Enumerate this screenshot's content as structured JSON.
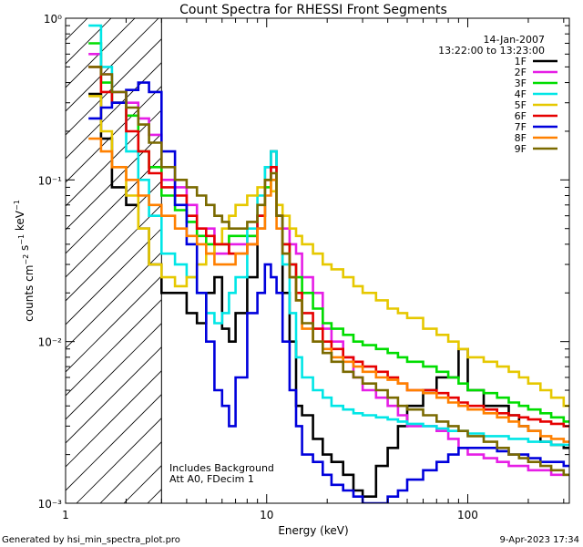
{
  "chart_data": {
    "type": "line",
    "title": "Count Spectra for RHESSI Front Segments",
    "xlabel": "Energy (keV)",
    "ylabel": "counts cm^-2 s^-1 keV^-1",
    "xscale": "log",
    "yscale": "log",
    "xlim": [
      1,
      320
    ],
    "ylim": [
      0.001,
      1
    ],
    "x_ticks": [
      {
        "value": 1,
        "label": "1"
      },
      {
        "value": 10,
        "label": "10"
      },
      {
        "value": 100,
        "label": "100"
      }
    ],
    "y_ticks": [
      {
        "value": 1,
        "label": "10⁰"
      },
      {
        "value": 0.1,
        "label": "10⁻¹"
      },
      {
        "value": 0.01,
        "label": "10⁻²"
      },
      {
        "value": 0.001,
        "label": "10⁻³"
      }
    ],
    "date": "14-Jan-2007",
    "time_range": "13:22:00 to 13:23:00",
    "annotations": [
      "Includes Background",
      "Att A0, FDecim 1"
    ],
    "excluded_region_max_kev": 3,
    "footer_left": "Generated by hsi_min_spectra_plot.pro",
    "footer_right": "9-Apr-2023 17:34",
    "series": [
      {
        "name": "1F",
        "color": "#000000",
        "x": [
          1.3,
          1.5,
          1.7,
          2,
          2.3,
          2.6,
          3,
          3.5,
          4,
          4.5,
          5,
          5.5,
          6,
          6.5,
          7,
          8,
          9,
          9.8,
          10.5,
          11.2,
          12,
          13,
          14,
          15,
          17,
          19,
          21,
          24,
          27,
          30,
          35,
          40,
          45,
          50,
          60,
          70,
          80,
          90,
          100,
          120,
          140,
          160,
          180,
          200,
          230,
          260,
          300
        ],
        "y": [
          0.34,
          0.18,
          0.09,
          0.07,
          0.05,
          0.03,
          0.02,
          0.02,
          0.015,
          0.013,
          0.02,
          0.025,
          0.012,
          0.01,
          0.015,
          0.025,
          0.05,
          0.12,
          0.15,
          0.06,
          0.02,
          0.01,
          0.004,
          0.0035,
          0.0025,
          0.002,
          0.0018,
          0.0015,
          0.0012,
          0.0011,
          0.0017,
          0.0022,
          0.003,
          0.004,
          0.005,
          0.006,
          0.006,
          0.009,
          0.005,
          0.004,
          0.004,
          0.0035,
          0.003,
          0.0028,
          0.0024,
          0.0023,
          0.0022
        ]
      },
      {
        "name": "2F",
        "color": "#e61ee6",
        "x": [
          1.3,
          1.5,
          1.7,
          2,
          2.3,
          2.6,
          3,
          3.5,
          4,
          4.5,
          5,
          5.5,
          6,
          6.5,
          7,
          8,
          9,
          9.8,
          10.5,
          11.2,
          12,
          13,
          14,
          15,
          17,
          19,
          21,
          24,
          27,
          30,
          35,
          40,
          45,
          50,
          60,
          70,
          80,
          90,
          100,
          120,
          140,
          160,
          180,
          200,
          230,
          260,
          300
        ],
        "y": [
          0.6,
          0.45,
          0.35,
          0.3,
          0.24,
          0.19,
          0.1,
          0.09,
          0.07,
          0.05,
          0.05,
          0.035,
          0.035,
          0.04,
          0.04,
          0.045,
          0.06,
          0.1,
          0.12,
          0.06,
          0.05,
          0.04,
          0.035,
          0.025,
          0.02,
          0.012,
          0.01,
          0.008,
          0.006,
          0.005,
          0.0045,
          0.004,
          0.0035,
          0.003,
          0.003,
          0.0028,
          0.0025,
          0.0022,
          0.002,
          0.0019,
          0.0018,
          0.0017,
          0.0017,
          0.0016,
          0.0016,
          0.0015,
          0.0015
        ]
      },
      {
        "name": "3F",
        "color": "#00dd00",
        "x": [
          1.3,
          1.5,
          1.7,
          2,
          2.3,
          2.6,
          3,
          3.5,
          4,
          4.5,
          5,
          5.5,
          6,
          6.5,
          7,
          8,
          9,
          9.8,
          10.5,
          11.2,
          12,
          13,
          14,
          15,
          17,
          19,
          21,
          24,
          27,
          30,
          35,
          40,
          45,
          50,
          60,
          70,
          80,
          90,
          100,
          120,
          140,
          160,
          180,
          200,
          230,
          260,
          300
        ],
        "y": [
          0.7,
          0.4,
          0.3,
          0.25,
          0.15,
          0.12,
          0.08,
          0.065,
          0.055,
          0.045,
          0.04,
          0.04,
          0.04,
          0.045,
          0.045,
          0.045,
          0.06,
          0.09,
          0.1,
          0.06,
          0.04,
          0.03,
          0.025,
          0.02,
          0.016,
          0.013,
          0.012,
          0.011,
          0.01,
          0.0095,
          0.009,
          0.0085,
          0.008,
          0.0075,
          0.007,
          0.0065,
          0.006,
          0.0055,
          0.005,
          0.0048,
          0.0045,
          0.0042,
          0.004,
          0.0038,
          0.0036,
          0.0034,
          0.0032
        ]
      },
      {
        "name": "4F",
        "color": "#00e6e6",
        "x": [
          1.3,
          1.5,
          1.7,
          2,
          2.3,
          2.6,
          3,
          3.5,
          4,
          4.5,
          5,
          5.5,
          6,
          6.5,
          7,
          8,
          9,
          9.8,
          10.5,
          11.2,
          12,
          13,
          14,
          15,
          17,
          19,
          21,
          24,
          27,
          30,
          35,
          40,
          45,
          50,
          60,
          70,
          80,
          90,
          100,
          120,
          140,
          160,
          180,
          200,
          230,
          260,
          300
        ],
        "y": [
          0.9,
          0.5,
          0.3,
          0.15,
          0.1,
          0.06,
          0.035,
          0.03,
          0.025,
          0.02,
          0.015,
          0.013,
          0.015,
          0.02,
          0.025,
          0.05,
          0.08,
          0.12,
          0.15,
          0.06,
          0.03,
          0.015,
          0.008,
          0.006,
          0.005,
          0.0045,
          0.004,
          0.0038,
          0.0036,
          0.0035,
          0.0034,
          0.0033,
          0.0032,
          0.0031,
          0.003,
          0.0029,
          0.0028,
          0.0028,
          0.0027,
          0.0026,
          0.0026,
          0.0025,
          0.0025,
          0.0024,
          0.0024,
          0.0023,
          0.0023
        ]
      },
      {
        "name": "5F",
        "color": "#e6c800",
        "x": [
          1.3,
          1.5,
          1.7,
          2,
          2.3,
          2.6,
          3,
          3.5,
          4,
          4.5,
          5,
          5.5,
          6,
          6.5,
          7,
          8,
          9,
          9.8,
          10.5,
          11.2,
          12,
          13,
          14,
          15,
          17,
          19,
          21,
          24,
          27,
          30,
          35,
          40,
          45,
          50,
          60,
          70,
          80,
          90,
          100,
          120,
          140,
          160,
          180,
          200,
          230,
          260,
          300
        ],
        "y": [
          0.33,
          0.2,
          0.12,
          0.08,
          0.05,
          0.03,
          0.025,
          0.022,
          0.025,
          0.03,
          0.035,
          0.04,
          0.05,
          0.06,
          0.07,
          0.08,
          0.09,
          0.1,
          0.085,
          0.07,
          0.06,
          0.05,
          0.045,
          0.04,
          0.035,
          0.03,
          0.028,
          0.025,
          0.022,
          0.02,
          0.018,
          0.016,
          0.015,
          0.014,
          0.012,
          0.011,
          0.01,
          0.009,
          0.008,
          0.0075,
          0.007,
          0.0065,
          0.006,
          0.0055,
          0.005,
          0.0045,
          0.004
        ]
      },
      {
        "name": "6F",
        "color": "#e60000",
        "x": [
          1.3,
          1.5,
          1.7,
          2,
          2.3,
          2.6,
          3,
          3.5,
          4,
          4.5,
          5,
          5.5,
          6,
          6.5,
          7,
          8,
          9,
          9.8,
          10.5,
          11.2,
          12,
          13,
          14,
          15,
          17,
          19,
          21,
          24,
          27,
          30,
          35,
          40,
          45,
          50,
          60,
          70,
          80,
          90,
          100,
          120,
          140,
          160,
          180,
          200,
          230,
          260,
          300
        ],
        "y": [
          0.5,
          0.35,
          0.3,
          0.2,
          0.15,
          0.11,
          0.09,
          0.08,
          0.06,
          0.05,
          0.045,
          0.04,
          0.04,
          0.035,
          0.035,
          0.04,
          0.06,
          0.1,
          0.12,
          0.06,
          0.04,
          0.03,
          0.02,
          0.015,
          0.012,
          0.01,
          0.009,
          0.008,
          0.0075,
          0.007,
          0.0065,
          0.006,
          0.0055,
          0.005,
          0.005,
          0.0048,
          0.0045,
          0.0042,
          0.004,
          0.0038,
          0.0036,
          0.0035,
          0.0034,
          0.0033,
          0.0032,
          0.0031,
          0.003
        ]
      },
      {
        "name": "7F",
        "color": "#0000dc",
        "x": [
          1.3,
          1.5,
          1.7,
          2,
          2.3,
          2.6,
          3,
          3.5,
          4,
          4.5,
          5,
          5.5,
          6,
          6.5,
          7,
          8,
          9,
          9.8,
          10.5,
          11.2,
          12,
          13,
          14,
          15,
          17,
          19,
          21,
          24,
          27,
          30,
          35,
          40,
          45,
          50,
          60,
          70,
          80,
          90,
          100,
          120,
          140,
          160,
          180,
          200,
          230,
          260,
          300
        ],
        "y": [
          0.24,
          0.28,
          0.3,
          0.36,
          0.4,
          0.35,
          0.15,
          0.07,
          0.04,
          0.02,
          0.01,
          0.005,
          0.004,
          0.003,
          0.006,
          0.015,
          0.02,
          0.03,
          0.025,
          0.02,
          0.01,
          0.005,
          0.003,
          0.002,
          0.0018,
          0.0015,
          0.0013,
          0.0012,
          0.0011,
          0.001,
          0.001,
          0.0011,
          0.0012,
          0.0014,
          0.0016,
          0.0018,
          0.002,
          0.0022,
          0.0022,
          0.0022,
          0.0021,
          0.002,
          0.002,
          0.0019,
          0.0018,
          0.0018,
          0.0017
        ]
      },
      {
        "name": "8F",
        "color": "#ff8000",
        "x": [
          1.3,
          1.5,
          1.7,
          2,
          2.3,
          2.6,
          3,
          3.5,
          4,
          4.5,
          5,
          5.5,
          6,
          6.5,
          7,
          8,
          9,
          9.8,
          10.5,
          11.2,
          12,
          13,
          14,
          15,
          17,
          19,
          21,
          24,
          27,
          30,
          35,
          40,
          45,
          50,
          60,
          70,
          80,
          90,
          100,
          120,
          140,
          160,
          180,
          200,
          230,
          260,
          300
        ],
        "y": [
          0.18,
          0.15,
          0.12,
          0.1,
          0.08,
          0.07,
          0.06,
          0.05,
          0.045,
          0.04,
          0.035,
          0.03,
          0.03,
          0.03,
          0.035,
          0.04,
          0.05,
          0.08,
          0.1,
          0.05,
          0.035,
          0.025,
          0.018,
          0.012,
          0.01,
          0.009,
          0.008,
          0.0075,
          0.007,
          0.0065,
          0.006,
          0.0058,
          0.0055,
          0.005,
          0.0048,
          0.0045,
          0.0042,
          0.004,
          0.0038,
          0.0036,
          0.0034,
          0.0032,
          0.003,
          0.0028,
          0.0026,
          0.0025,
          0.0024
        ]
      },
      {
        "name": "9F",
        "color": "#7a6a00",
        "x": [
          1.3,
          1.5,
          1.7,
          2,
          2.3,
          2.6,
          3,
          3.5,
          4,
          4.5,
          5,
          5.5,
          6,
          6.5,
          7,
          8,
          9,
          9.8,
          10.5,
          11.2,
          12,
          13,
          14,
          15,
          17,
          19,
          21,
          24,
          27,
          30,
          35,
          40,
          45,
          50,
          60,
          70,
          80,
          90,
          100,
          120,
          140,
          160,
          180,
          200,
          230,
          260,
          300
        ],
        "y": [
          0.5,
          0.45,
          0.35,
          0.28,
          0.22,
          0.17,
          0.12,
          0.1,
          0.09,
          0.08,
          0.07,
          0.06,
          0.055,
          0.05,
          0.05,
          0.055,
          0.07,
          0.1,
          0.11,
          0.06,
          0.035,
          0.025,
          0.018,
          0.013,
          0.01,
          0.0085,
          0.0075,
          0.0065,
          0.006,
          0.0055,
          0.005,
          0.0045,
          0.004,
          0.0038,
          0.0035,
          0.0032,
          0.003,
          0.0028,
          0.0026,
          0.0024,
          0.0022,
          0.002,
          0.0019,
          0.0018,
          0.0017,
          0.0016,
          0.0015
        ]
      }
    ]
  }
}
